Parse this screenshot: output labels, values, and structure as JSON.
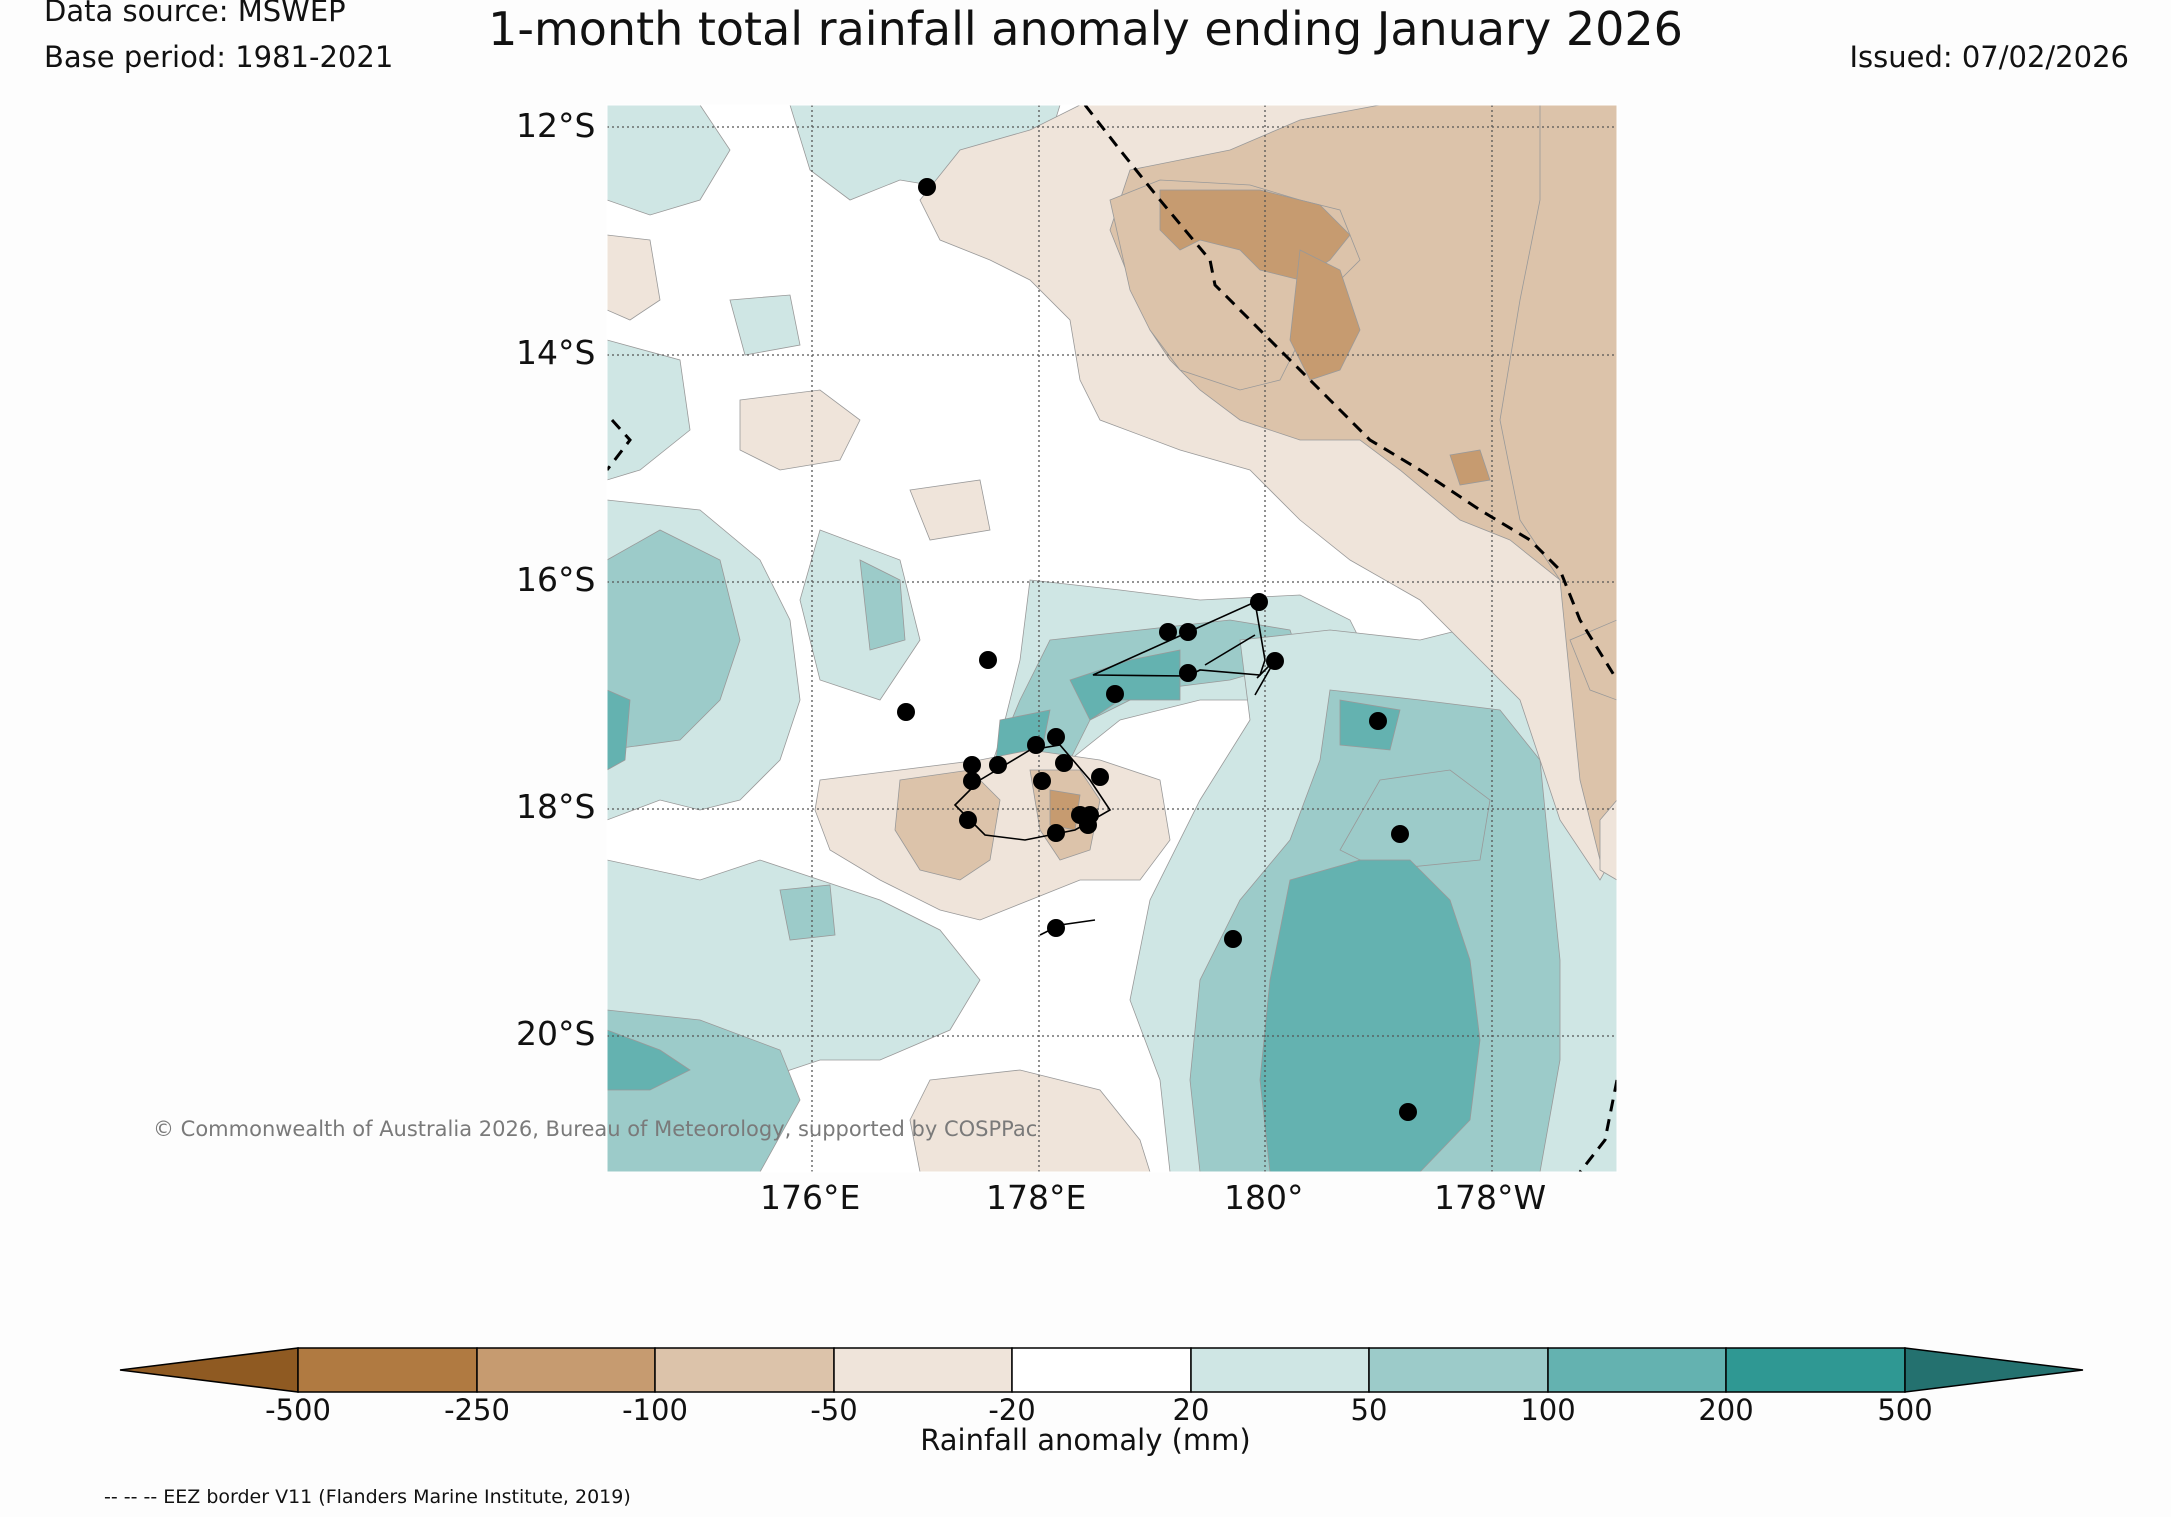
{
  "header": {
    "title": "1-month total rainfall anomaly ending January 2026",
    "data_source": "Data source: MSWEP",
    "base_period": "Base period: 1981-2021",
    "issued": "Issued: 07/02/2026"
  },
  "map": {
    "lat_labels": [
      "12°S",
      "14°S",
      "16°S",
      "18°S",
      "20°S"
    ],
    "lon_labels": [
      "176°E",
      "178°E",
      "180°",
      "178°W"
    ],
    "copyright": "© Commonwealth of Australia 2026, Bureau of Meteorology, supported by COSPPac",
    "colors": {
      "c_500": "#8f5a22",
      "c_250": "#b07a41",
      "c_100": "#c69b70",
      "c_50": "#dcc3aa",
      "c_20": "#efe4da",
      "c0": "#ffffff",
      "p20": "#cfe6e4",
      "p50": "#9ccbc9",
      "p100": "#64b2b0",
      "p200": "#2f9893",
      "p500": "#24716f"
    }
  },
  "colorbar": {
    "ticks": [
      "-500",
      "-250",
      "-100",
      "-50",
      "-20",
      "20",
      "50",
      "100",
      "200",
      "500"
    ],
    "label": "Rainfall anomaly (mm)"
  },
  "footer": {
    "eez_note": "-- -- -- EEZ border V11 (Flanders Marine Institute, 2019)"
  }
}
